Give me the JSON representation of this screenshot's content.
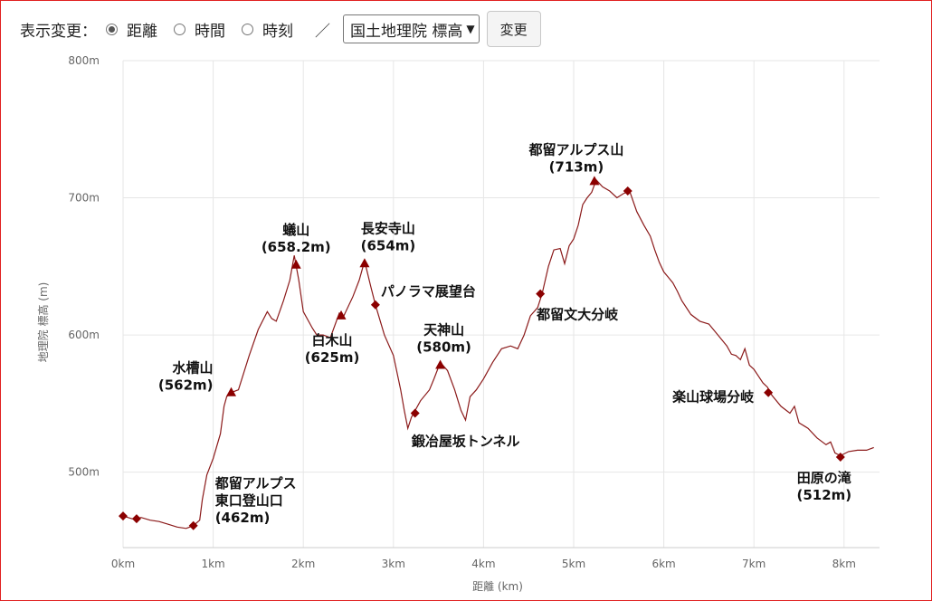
{
  "toolbar": {
    "display_label": "表示変更：",
    "radio_options": [
      {
        "label": "距離",
        "selected": true
      },
      {
        "label": "時間",
        "selected": false
      },
      {
        "label": "時刻",
        "selected": false
      }
    ],
    "separator": "／",
    "elevation_source": "国土地理院 標高",
    "change_button": "変更"
  },
  "colors": {
    "line": "#8b1a1a",
    "marker": "#8b0000",
    "grid": "#e6e6e6",
    "frame": "#e02020"
  },
  "chart_data": {
    "type": "line",
    "xlabel": "距離 (km)",
    "ylabel": "地理院 標高 (m)",
    "xlim": [
      0,
      8.35
    ],
    "ylim": [
      445,
      800
    ],
    "y_ticks": [
      {
        "value": 500,
        "label": "500m"
      },
      {
        "value": 600,
        "label": "600m"
      },
      {
        "value": 700,
        "label": "700m"
      },
      {
        "value": 800,
        "label": "800m"
      }
    ],
    "x_ticks": [
      {
        "value": 0,
        "label": "0km"
      },
      {
        "value": 1,
        "label": "1km"
      },
      {
        "value": 2,
        "label": "2km"
      },
      {
        "value": 3,
        "label": "3km"
      },
      {
        "value": 4,
        "label": "4km"
      },
      {
        "value": 5,
        "label": "5km"
      },
      {
        "value": 6,
        "label": "6km"
      },
      {
        "value": 7,
        "label": "7km"
      },
      {
        "value": 8,
        "label": "8km"
      }
    ],
    "grid": true,
    "profile": [
      [
        0.0,
        468
      ],
      [
        0.1,
        466
      ],
      [
        0.15,
        466
      ],
      [
        0.2,
        467
      ],
      [
        0.3,
        465
      ],
      [
        0.4,
        464
      ],
      [
        0.5,
        462
      ],
      [
        0.6,
        460
      ],
      [
        0.7,
        459
      ],
      [
        0.78,
        461
      ],
      [
        0.85,
        465
      ],
      [
        0.88,
        480
      ],
      [
        0.93,
        498
      ],
      [
        1.0,
        510
      ],
      [
        1.08,
        528
      ],
      [
        1.12,
        548
      ],
      [
        1.15,
        555
      ],
      [
        1.2,
        558
      ],
      [
        1.28,
        560
      ],
      [
        1.4,
        585
      ],
      [
        1.5,
        604
      ],
      [
        1.6,
        617
      ],
      [
        1.65,
        612
      ],
      [
        1.7,
        610
      ],
      [
        1.78,
        625
      ],
      [
        1.85,
        640
      ],
      [
        1.9,
        658
      ],
      [
        1.95,
        640
      ],
      [
        2.0,
        617
      ],
      [
        2.1,
        605
      ],
      [
        2.15,
        600
      ],
      [
        2.22,
        600
      ],
      [
        2.3,
        598
      ],
      [
        2.4,
        616
      ],
      [
        2.45,
        614
      ],
      [
        2.55,
        628
      ],
      [
        2.62,
        640
      ],
      [
        2.68,
        654
      ],
      [
        2.75,
        635
      ],
      [
        2.8,
        622
      ],
      [
        2.9,
        600
      ],
      [
        3.0,
        585
      ],
      [
        3.08,
        560
      ],
      [
        3.12,
        545
      ],
      [
        3.16,
        532
      ],
      [
        3.2,
        540
      ],
      [
        3.3,
        552
      ],
      [
        3.4,
        560
      ],
      [
        3.45,
        568
      ],
      [
        3.52,
        580
      ],
      [
        3.6,
        574
      ],
      [
        3.68,
        560
      ],
      [
        3.75,
        545
      ],
      [
        3.8,
        538
      ],
      [
        3.85,
        555
      ],
      [
        3.92,
        560
      ],
      [
        4.0,
        568
      ],
      [
        4.1,
        580
      ],
      [
        4.2,
        590
      ],
      [
        4.3,
        592
      ],
      [
        4.38,
        590
      ],
      [
        4.45,
        600
      ],
      [
        4.52,
        614
      ],
      [
        4.6,
        620
      ],
      [
        4.65,
        630
      ],
      [
        4.72,
        650
      ],
      [
        4.78,
        662
      ],
      [
        4.85,
        663
      ],
      [
        4.9,
        652
      ],
      [
        4.95,
        665
      ],
      [
        5.0,
        670
      ],
      [
        5.05,
        680
      ],
      [
        5.1,
        695
      ],
      [
        5.15,
        700
      ],
      [
        5.2,
        704
      ],
      [
        5.25,
        713
      ],
      [
        5.32,
        708
      ],
      [
        5.4,
        705
      ],
      [
        5.48,
        700
      ],
      [
        5.55,
        703
      ],
      [
        5.62,
        705
      ],
      [
        5.7,
        690
      ],
      [
        5.78,
        680
      ],
      [
        5.85,
        672
      ],
      [
        5.9,
        662
      ],
      [
        5.95,
        653
      ],
      [
        6.0,
        646
      ],
      [
        6.05,
        642
      ],
      [
        6.1,
        638
      ],
      [
        6.15,
        632
      ],
      [
        6.2,
        625
      ],
      [
        6.3,
        615
      ],
      [
        6.4,
        610
      ],
      [
        6.5,
        608
      ],
      [
        6.6,
        600
      ],
      [
        6.7,
        592
      ],
      [
        6.75,
        586
      ],
      [
        6.8,
        585
      ],
      [
        6.85,
        582
      ],
      [
        6.9,
        590
      ],
      [
        6.95,
        578
      ],
      [
        7.0,
        575
      ],
      [
        7.05,
        570
      ],
      [
        7.1,
        565
      ],
      [
        7.15,
        562
      ],
      [
        7.2,
        556
      ],
      [
        7.3,
        548
      ],
      [
        7.4,
        543
      ],
      [
        7.45,
        548
      ],
      [
        7.5,
        536
      ],
      [
        7.6,
        532
      ],
      [
        7.7,
        525
      ],
      [
        7.8,
        520
      ],
      [
        7.85,
        522
      ],
      [
        7.9,
        514
      ],
      [
        7.96,
        512
      ],
      [
        8.05,
        515
      ],
      [
        8.15,
        516
      ],
      [
        8.25,
        516
      ],
      [
        8.33,
        518
      ]
    ],
    "waypoints": [
      {
        "x": 0.0,
        "y": 468,
        "marker": "diamond",
        "label": []
      },
      {
        "x": 0.15,
        "y": 466,
        "marker": "diamond",
        "label": []
      },
      {
        "x": 0.78,
        "y": 461,
        "marker": "diamond",
        "label": [
          "都留アルプス",
          "東口登山口",
          "(462m)"
        ],
        "anchor": "start",
        "dx": 24,
        "dy": -42
      },
      {
        "x": 1.2,
        "y": 558,
        "marker": "triangle",
        "label": [
          "水槽山",
          "(562m)"
        ],
        "anchor": "end",
        "dx": -20,
        "dy": -22
      },
      {
        "x": 1.92,
        "y": 651,
        "marker": "triangle",
        "label": [
          "蟻山",
          "(658.2m)"
        ],
        "anchor": "middle",
        "dx": 0,
        "dy": -34
      },
      {
        "x": 2.42,
        "y": 614,
        "marker": "triangle",
        "label": [
          "白木山",
          "(625m)"
        ],
        "anchor": "middle",
        "dx": -10,
        "dy": 32
      },
      {
        "x": 2.68,
        "y": 652,
        "marker": "triangle",
        "label": [
          "長安寺山",
          "(654m)"
        ],
        "anchor": "middle",
        "dx": 26,
        "dy": -34
      },
      {
        "x": 2.8,
        "y": 622,
        "marker": "diamond",
        "label": [
          "パノラマ展望台"
        ],
        "anchor": "start",
        "dx": 6,
        "dy": -10
      },
      {
        "x": 3.52,
        "y": 578,
        "marker": "triangle",
        "label": [
          "天神山",
          "(580m)"
        ],
        "anchor": "middle",
        "dx": 4,
        "dy": -34
      },
      {
        "x": 3.24,
        "y": 543,
        "marker": "diamond",
        "label": [
          "鍛冶屋坂トンネル"
        ],
        "anchor": "middle",
        "dx": 56,
        "dy": 36
      },
      {
        "x": 5.23,
        "y": 712,
        "marker": "triangle",
        "label": [
          "都留アルプス山",
          "(713m)"
        ],
        "anchor": "middle",
        "dx": -20,
        "dy": -30
      },
      {
        "x": 5.6,
        "y": 705,
        "marker": "diamond",
        "label": []
      },
      {
        "x": 4.63,
        "y": 630,
        "marker": "diamond",
        "label": [
          "都留文大分岐"
        ],
        "anchor": "start",
        "dx": -4,
        "dy": 28
      },
      {
        "x": 7.16,
        "y": 558,
        "marker": "diamond",
        "label": [
          "楽山球場分岐"
        ],
        "anchor": "end",
        "dx": -16,
        "dy": 10
      },
      {
        "x": 7.96,
        "y": 511,
        "marker": "diamond",
        "label": [
          "田原の滝",
          "(512m)"
        ],
        "anchor": "middle",
        "dx": -18,
        "dy": 28
      }
    ]
  }
}
